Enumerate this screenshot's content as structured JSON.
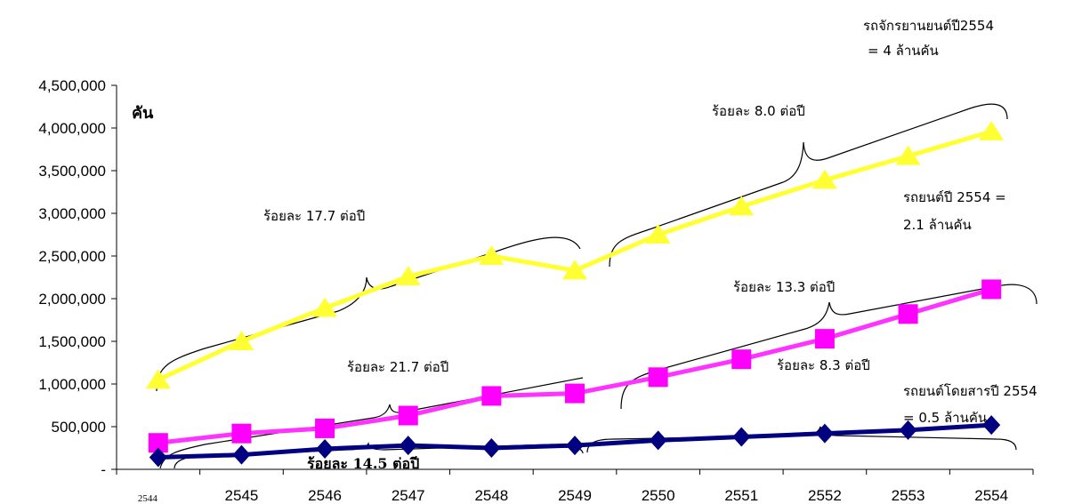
{
  "chart_data": {
    "type": "line",
    "x": [
      "2544",
      "2545",
      "2546",
      "2547",
      "2548",
      "2549",
      "2550",
      "2551",
      "2552",
      "2553",
      "2554"
    ],
    "ylabel": "คัน",
    "ylim": [
      0,
      4500000
    ],
    "ytick_values": [
      0,
      500000,
      1000000,
      1500000,
      2000000,
      2500000,
      3000000,
      3500000,
      4000000,
      4500000
    ],
    "ytick_labels": [
      "-",
      "500,000",
      "1,000,000",
      "1,500,000",
      "2,000,000",
      "2,500,000",
      "3,000,000",
      "3,500,000",
      "4,000,000",
      "4,500,000"
    ],
    "grid": false,
    "series": [
      {
        "color": "#ffff33",
        "line_color": "#ffff33",
        "marker": "triangle",
        "values": [
          1050000,
          1500000,
          1890000,
          2260000,
          2500000,
          2330000,
          2750000,
          3080000,
          3390000,
          3670000,
          3960000
        ]
      },
      {
        "color": "#ff00ff",
        "line_color": "#ff33ff",
        "marker": "square",
        "values": [
          310000,
          420000,
          480000,
          630000,
          860000,
          890000,
          1080000,
          1290000,
          1530000,
          1820000,
          2110000
        ]
      },
      {
        "color": "#000080",
        "line_color": "#000080",
        "marker": "diamond",
        "values": [
          140000,
          170000,
          240000,
          280000,
          250000,
          280000,
          340000,
          380000,
          420000,
          460000,
          520000
        ]
      }
    ],
    "annotations": {
      "motorcycle_total": [
        "รถจักรยานยนต์ปี2554",
        "= 4 ล้านคัน"
      ],
      "moto_rate_early": "ร้อยละ 17.7 ต่อปี",
      "moto_rate_late": "ร้อยละ 8.0 ต่อปี",
      "car_total": [
        "รถยนต์ปี 2554 =",
        "2.1 ล้านคัน"
      ],
      "car_rate_late": "ร้อยละ 13.3 ต่อปี",
      "car_rate_early": "ร้อยละ 21.7 ต่อปี",
      "bus_rate_late": "ร้อยละ 8.3 ต่อปี",
      "bus_total": [
        "รถยนต์โดยสารปี 2554",
        "= 0.5 ล้านคัน"
      ],
      "bus_rate_early": "ร้อยละ 14.5 ต่อปี"
    }
  }
}
